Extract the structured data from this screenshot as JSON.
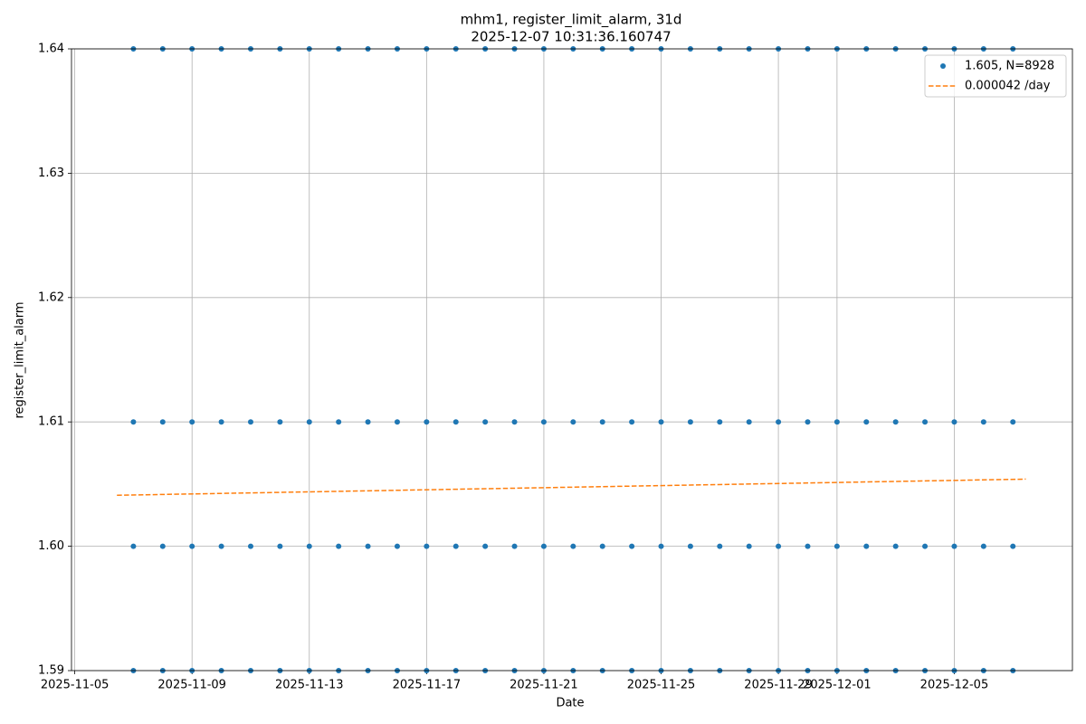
{
  "chart_data": {
    "type": "scatter",
    "title": "mhm1, register_limit_alarm, 31d",
    "subtitle": "2025-12-07 10:31:36.160747",
    "x_label": "Date",
    "y_label": "register_limit_alarm",
    "xlim": [
      "2025-11-04 21:19",
      "2025-12-09 00:43"
    ],
    "xticks": [
      "2025-11-05",
      "2025-11-09",
      "2025-11-13",
      "2025-11-17",
      "2025-11-21",
      "2025-11-25",
      "2025-11-29",
      "2025-12-01",
      "2025-12-05"
    ],
    "ylim": [
      1.59,
      1.64
    ],
    "yticks": [
      1.59,
      {
        "value": 1.6,
        "label": "1.60"
      },
      1.61,
      1.62,
      1.63,
      1.64
    ],
    "grid": true,
    "legend": "upper right",
    "series": [
      {
        "name": "1.605, N=8928",
        "type": "scatter",
        "color": "#1f77b4",
        "x": [
          "2025-11-07",
          "2025-11-08",
          "2025-11-09",
          "2025-11-10",
          "2025-11-11",
          "2025-11-12",
          "2025-11-13",
          "2025-11-14",
          "2025-11-15",
          "2025-11-16",
          "2025-11-17",
          "2025-11-18",
          "2025-11-19",
          "2025-11-20",
          "2025-11-21",
          "2025-11-22",
          "2025-11-23",
          "2025-11-24",
          "2025-11-25",
          "2025-11-26",
          "2025-11-27",
          "2025-11-28",
          "2025-11-29",
          "2025-11-30",
          "2025-12-01",
          "2025-12-02",
          "2025-12-03",
          "2025-12-04",
          "2025-12-05",
          "2025-12-06",
          "2025-12-07",
          "2025-11-07",
          "2025-11-08",
          "2025-11-09",
          "2025-11-10",
          "2025-11-11",
          "2025-11-12",
          "2025-11-13",
          "2025-11-14",
          "2025-11-15",
          "2025-11-16",
          "2025-11-17",
          "2025-11-18",
          "2025-11-19",
          "2025-11-20",
          "2025-11-21",
          "2025-11-22",
          "2025-11-23",
          "2025-11-24",
          "2025-11-25",
          "2025-11-26",
          "2025-11-27",
          "2025-11-28",
          "2025-11-29",
          "2025-11-30",
          "2025-12-01",
          "2025-12-02",
          "2025-12-03",
          "2025-12-04",
          "2025-12-05",
          "2025-12-06",
          "2025-12-07",
          "2025-11-07",
          "2025-11-08",
          "2025-11-09",
          "2025-11-10",
          "2025-11-11",
          "2025-11-12",
          "2025-11-13",
          "2025-11-14",
          "2025-11-15",
          "2025-11-16",
          "2025-11-17",
          "2025-11-18",
          "2025-11-19",
          "2025-11-20",
          "2025-11-21",
          "2025-11-22",
          "2025-11-23",
          "2025-11-24",
          "2025-11-25",
          "2025-11-26",
          "2025-11-27",
          "2025-11-28",
          "2025-11-29",
          "2025-11-30",
          "2025-12-01",
          "2025-12-02",
          "2025-12-03",
          "2025-12-04",
          "2025-12-05",
          "2025-12-06",
          "2025-12-07",
          "2025-11-07",
          "2025-11-08",
          "2025-11-09",
          "2025-11-10",
          "2025-11-11",
          "2025-11-12",
          "2025-11-13",
          "2025-11-14",
          "2025-11-15",
          "2025-11-16",
          "2025-11-17",
          "2025-11-18",
          "2025-11-19",
          "2025-11-20",
          "2025-11-21",
          "2025-11-22",
          "2025-11-23",
          "2025-11-24",
          "2025-11-25",
          "2025-11-26",
          "2025-11-27",
          "2025-11-28",
          "2025-11-29",
          "2025-11-30",
          "2025-12-01",
          "2025-12-02",
          "2025-12-03",
          "2025-12-04",
          "2025-12-05",
          "2025-12-06",
          "2025-12-07"
        ],
        "values": [
          1.59,
          1.59,
          1.59,
          1.59,
          1.59,
          1.59,
          1.59,
          1.59,
          1.59,
          1.59,
          1.59,
          1.59,
          1.59,
          1.59,
          1.59,
          1.59,
          1.59,
          1.59,
          1.59,
          1.59,
          1.59,
          1.59,
          1.59,
          1.59,
          1.59,
          1.59,
          1.59,
          1.59,
          1.59,
          1.59,
          1.59,
          1.6,
          1.6,
          1.6,
          1.6,
          1.6,
          1.6,
          1.6,
          1.6,
          1.6,
          1.6,
          1.6,
          1.6,
          1.6,
          1.6,
          1.6,
          1.6,
          1.6,
          1.6,
          1.6,
          1.6,
          1.6,
          1.6,
          1.6,
          1.6,
          1.6,
          1.6,
          1.6,
          1.6,
          1.6,
          1.6,
          1.6,
          1.61,
          1.61,
          1.61,
          1.61,
          1.61,
          1.61,
          1.61,
          1.61,
          1.61,
          1.61,
          1.61,
          1.61,
          1.61,
          1.61,
          1.61,
          1.61,
          1.61,
          1.61,
          1.61,
          1.61,
          1.61,
          1.61,
          1.61,
          1.61,
          1.61,
          1.61,
          1.61,
          1.61,
          1.61,
          1.61,
          1.61,
          1.64,
          1.64,
          1.64,
          1.64,
          1.64,
          1.64,
          1.64,
          1.64,
          1.64,
          1.64,
          1.64,
          1.64,
          1.64,
          1.64,
          1.64,
          1.64,
          1.64,
          1.64,
          1.64,
          1.64,
          1.64,
          1.64,
          1.64,
          1.64,
          1.64,
          1.64,
          1.64,
          1.64,
          1.64,
          1.64,
          1.64
        ]
      },
      {
        "name": "0.000042 /day",
        "type": "line",
        "color": "#ff7f0e",
        "dashed": true,
        "x": [
          "2025-11-06 10:31",
          "2025-12-07 10:31"
        ],
        "values": [
          1.6041,
          1.6054
        ]
      }
    ]
  }
}
